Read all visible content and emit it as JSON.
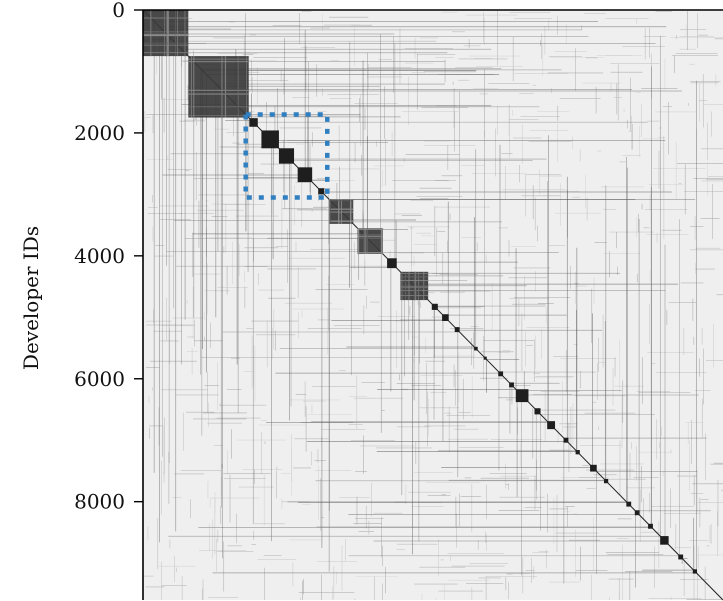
{
  "chart_data": {
    "type": "heatmap",
    "title": "",
    "xlabel": "",
    "ylabel": "Developer IDs",
    "ylim": [
      0,
      9600
    ],
    "xlim": [
      0,
      9600
    ],
    "yticks": [
      {
        "value": 0,
        "label": "0"
      },
      {
        "value": 2000,
        "label": "2000"
      },
      {
        "value": 4000,
        "label": "4000"
      },
      {
        "value": 6000,
        "label": "6000"
      },
      {
        "value": 8000,
        "label": "8000"
      }
    ],
    "grid": false,
    "colormap": {
      "background": "#efefef",
      "low": "#cfcfcf",
      "high": "#111111"
    },
    "diagonal_blocks": [
      {
        "start": 0,
        "end": 750
      },
      {
        "start": 750,
        "end": 1750
      },
      {
        "start": 1760,
        "end": 1900
      },
      {
        "start": 1960,
        "end": 2250
      },
      {
        "start": 2250,
        "end": 2500
      },
      {
        "start": 2560,
        "end": 2800
      },
      {
        "start": 2900,
        "end": 3000
      },
      {
        "start": 3080,
        "end": 3480
      },
      {
        "start": 3550,
        "end": 3970
      },
      {
        "start": 4040,
        "end": 4200
      },
      {
        "start": 4260,
        "end": 4720
      },
      {
        "start": 4780,
        "end": 4880
      },
      {
        "start": 4950,
        "end": 5060
      },
      {
        "start": 5160,
        "end": 5240
      },
      {
        "start": 5480,
        "end": 5540
      },
      {
        "start": 5640,
        "end": 5690
      },
      {
        "start": 5880,
        "end": 5960
      },
      {
        "start": 6060,
        "end": 6140
      },
      {
        "start": 6170,
        "end": 6380
      },
      {
        "start": 6480,
        "end": 6580
      },
      {
        "start": 6690,
        "end": 6820
      },
      {
        "start": 6960,
        "end": 7040
      },
      {
        "start": 7160,
        "end": 7230
      },
      {
        "start": 7400,
        "end": 7510
      },
      {
        "start": 7630,
        "end": 7700
      },
      {
        "start": 8000,
        "end": 8080
      },
      {
        "start": 8140,
        "end": 8220
      },
      {
        "start": 8360,
        "end": 8440
      },
      {
        "start": 8560,
        "end": 8700
      },
      {
        "start": 8860,
        "end": 8940
      },
      {
        "start": 9100,
        "end": 9170
      }
    ],
    "annotations": [
      {
        "type": "dashed-rectangle",
        "color": "#2f7fc1",
        "x_range": [
          1700,
          3050
        ],
        "y_range": [
          1700,
          3050
        ]
      }
    ]
  }
}
